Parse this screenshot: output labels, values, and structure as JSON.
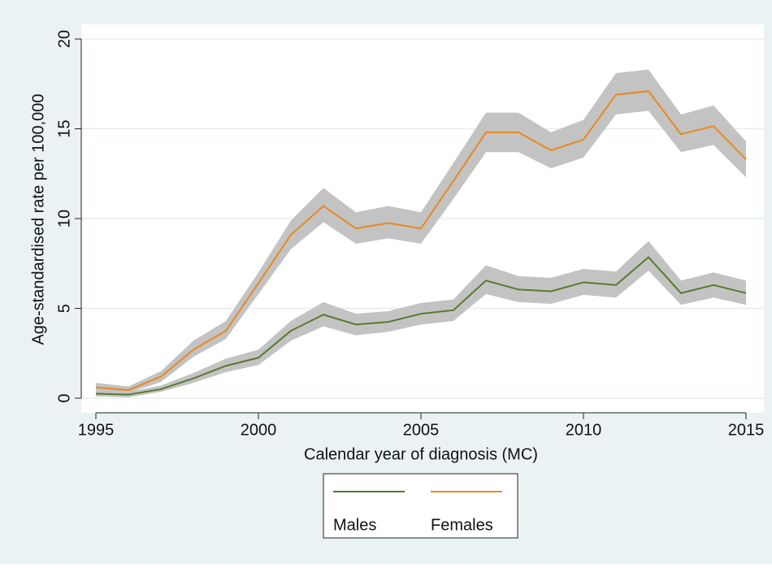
{
  "chart_data": {
    "type": "line",
    "x_label": "Calendar year of diagnosis (MC)",
    "y_label": "Age-standardised rate per 100,000",
    "x": [
      1995,
      1996,
      1997,
      1998,
      1999,
      2000,
      2001,
      2002,
      2003,
      2004,
      2005,
      2006,
      2007,
      2008,
      2009,
      2010,
      2011,
      2012,
      2013,
      2014,
      2015
    ],
    "xlim": [
      1995,
      2015
    ],
    "xticks": [
      1995,
      2000,
      2005,
      2010,
      2015
    ],
    "ylim": [
      0,
      20
    ],
    "yticks": [
      0,
      5,
      10,
      15,
      20
    ],
    "grid": true,
    "band_color": "#c3c3c3",
    "series": [
      {
        "name": "Males",
        "color": "#587a2e",
        "values": [
          0.25,
          0.2,
          0.5,
          1.1,
          1.8,
          2.25,
          3.75,
          4.65,
          4.1,
          4.25,
          4.7,
          4.9,
          6.55,
          6.05,
          5.95,
          6.45,
          6.3,
          7.85,
          5.85,
          6.3,
          5.85
        ],
        "lower": [
          0.1,
          0.05,
          0.35,
          0.85,
          1.45,
          1.85,
          3.2,
          4.0,
          3.5,
          3.7,
          4.1,
          4.3,
          5.8,
          5.35,
          5.25,
          5.75,
          5.6,
          7.1,
          5.2,
          5.6,
          5.2
        ],
        "upper": [
          0.45,
          0.35,
          0.7,
          1.4,
          2.2,
          2.7,
          4.3,
          5.35,
          4.7,
          4.85,
          5.3,
          5.5,
          7.4,
          6.8,
          6.7,
          7.2,
          7.05,
          8.75,
          6.55,
          7.0,
          6.55
        ]
      },
      {
        "name": "Females",
        "color": "#e8891e",
        "values": [
          0.6,
          0.45,
          1.2,
          2.7,
          3.75,
          6.4,
          9.1,
          10.7,
          9.45,
          9.75,
          9.45,
          12.1,
          14.8,
          14.8,
          13.8,
          14.4,
          16.9,
          17.1,
          14.7,
          15.15,
          13.3
        ],
        "lower": [
          0.4,
          0.3,
          0.9,
          2.3,
          3.3,
          5.8,
          8.3,
          9.8,
          8.6,
          8.9,
          8.6,
          11.1,
          13.7,
          13.7,
          12.8,
          13.4,
          15.8,
          16.0,
          13.7,
          14.1,
          12.3
        ],
        "upper": [
          0.85,
          0.65,
          1.5,
          3.2,
          4.3,
          7.0,
          9.9,
          11.7,
          10.35,
          10.7,
          10.35,
          13.1,
          15.9,
          15.9,
          14.8,
          15.5,
          18.1,
          18.3,
          15.8,
          16.3,
          14.3
        ]
      }
    ]
  }
}
